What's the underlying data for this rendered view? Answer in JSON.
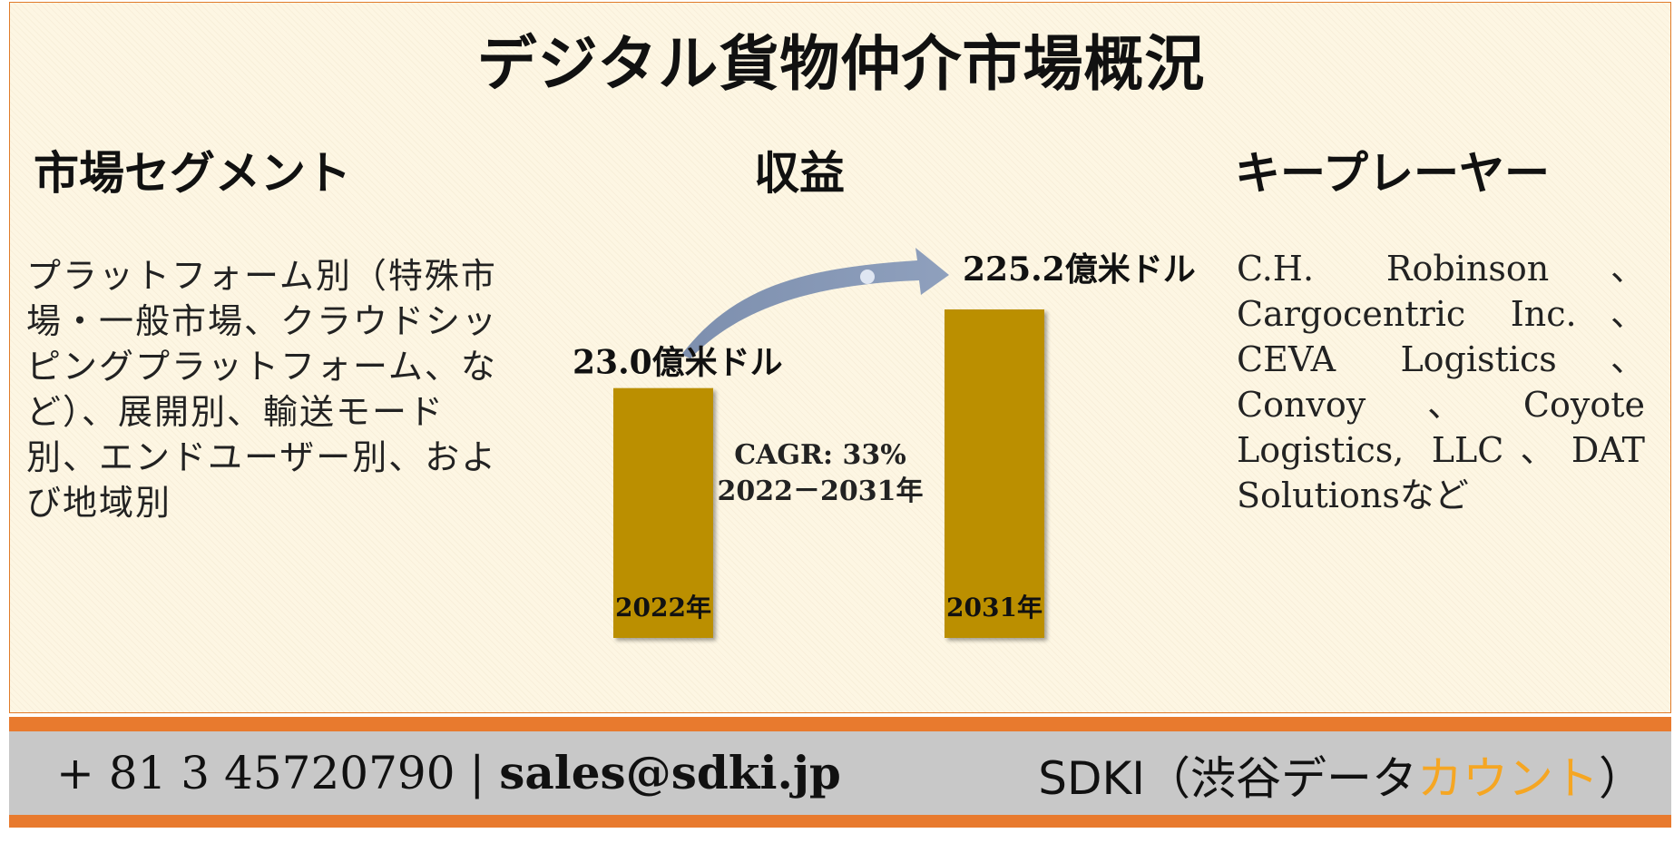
{
  "title": "デジタル貨物仲介市場概況",
  "sections": {
    "segments": {
      "heading": "市場セグメント",
      "text": "プラットフォーム別（特殊市場・一般市場、クラウドシッピングプラットフォーム、など）、展開別、輸送モード別、エンドユーザー別、および地域別"
    },
    "revenue": {
      "heading": "収益"
    },
    "key_players": {
      "heading": "キープレーヤー",
      "text": "C.H. Robinson、Cargocentric Inc.、CEVA Logistics、Convoy、Coyote Logistics, LLC、DAT Solutionsなど"
    }
  },
  "chart_data": {
    "type": "bar",
    "categories": [
      "2022年",
      "2031年"
    ],
    "values": [
      23.0,
      225.2
    ],
    "value_labels": [
      "23.0億米ドル",
      "225.2億米ドル"
    ],
    "annotation": {
      "line1": "CAGR: 33%",
      "line2": "2022－2031年"
    },
    "bar_color": "#bb8f00"
  },
  "footer": {
    "phone": "+ 81 3 45720790",
    "separator": "|",
    "email": "sales@sdki.jp",
    "brand_prefix": "SDKI（渋谷データ",
    "brand_accent": "カウント",
    "brand_suffix": "）"
  },
  "colors": {
    "border": "#e07b2a",
    "footer_bar": "#e87a2e",
    "footer_bg": "#c8c8c8",
    "accent": "#f5a623",
    "arrow": "#8a9bb8"
  }
}
